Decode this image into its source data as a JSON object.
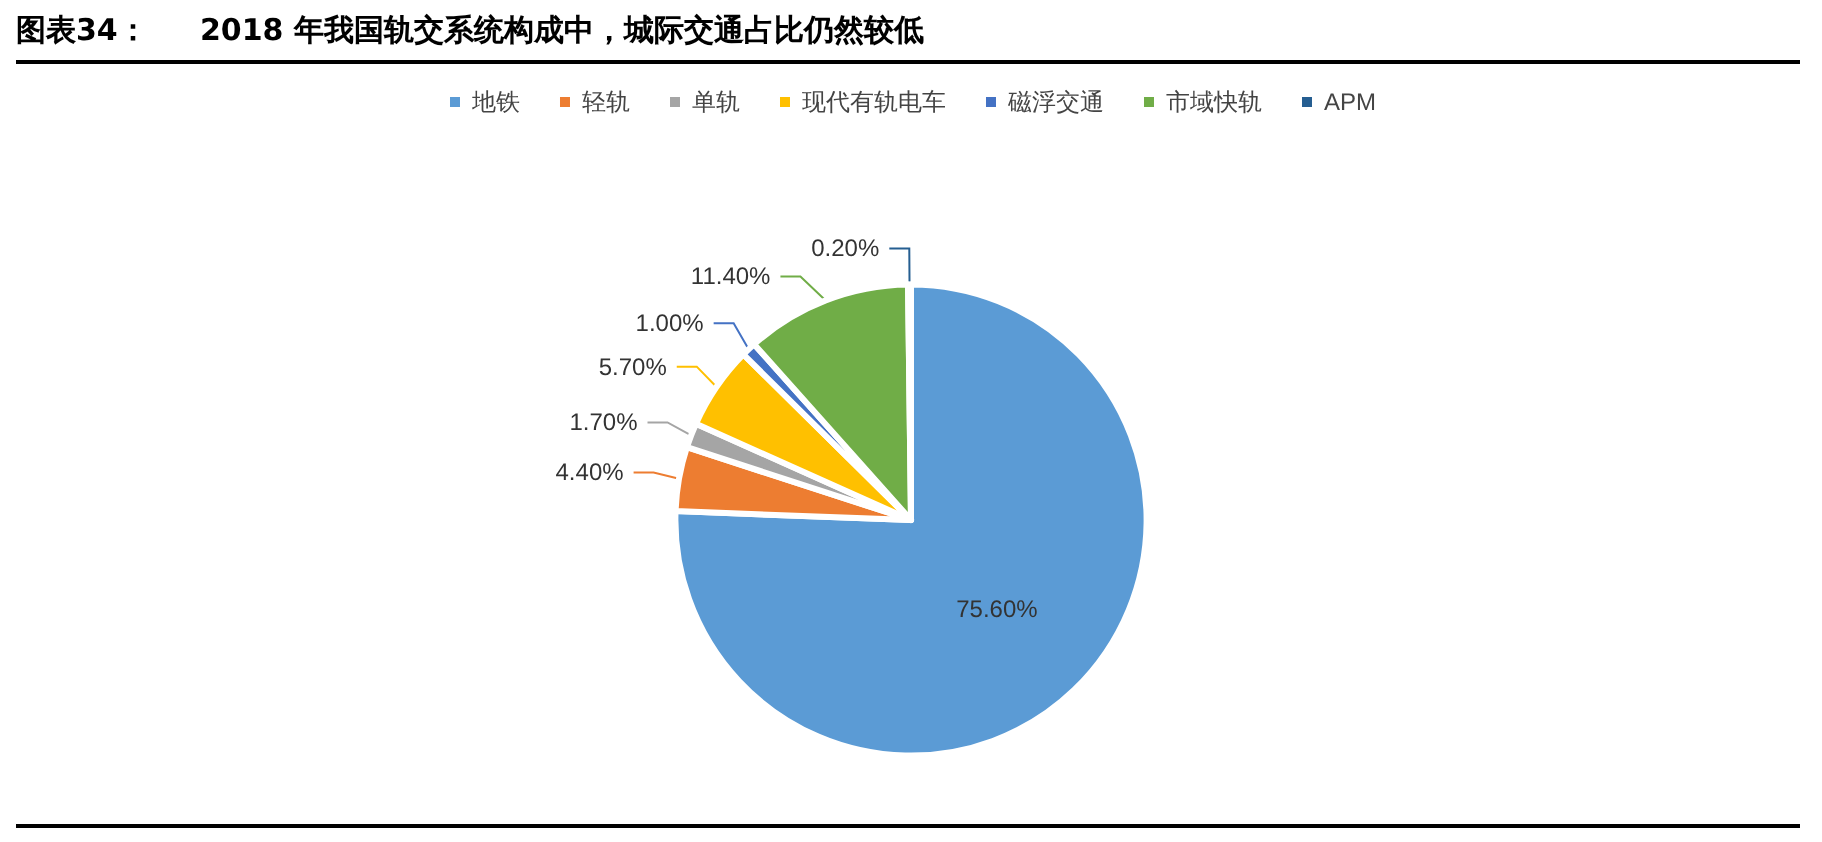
{
  "chart_data": {
    "type": "pie",
    "title": "图表34：     2018 年我国轨交系统构成中，城际交通占比仍然较低",
    "categories": [
      "地铁",
      "轻轨",
      "单轨",
      "现代有轨电车",
      "磁浮交通",
      "市域快轨",
      "APM"
    ],
    "values": [
      75.6,
      4.4,
      1.7,
      5.7,
      1.0,
      11.4,
      0.2
    ],
    "value_labels": [
      "75.60%",
      "4.40%",
      "1.70%",
      "5.70%",
      "1.00%",
      "11.40%",
      "0.20%"
    ],
    "colors": [
      "#5b9bd5",
      "#ed7d31",
      "#a5a5a5",
      "#ffc000",
      "#4472c4",
      "#70ad47",
      "#255e91"
    ],
    "legend": "top"
  }
}
